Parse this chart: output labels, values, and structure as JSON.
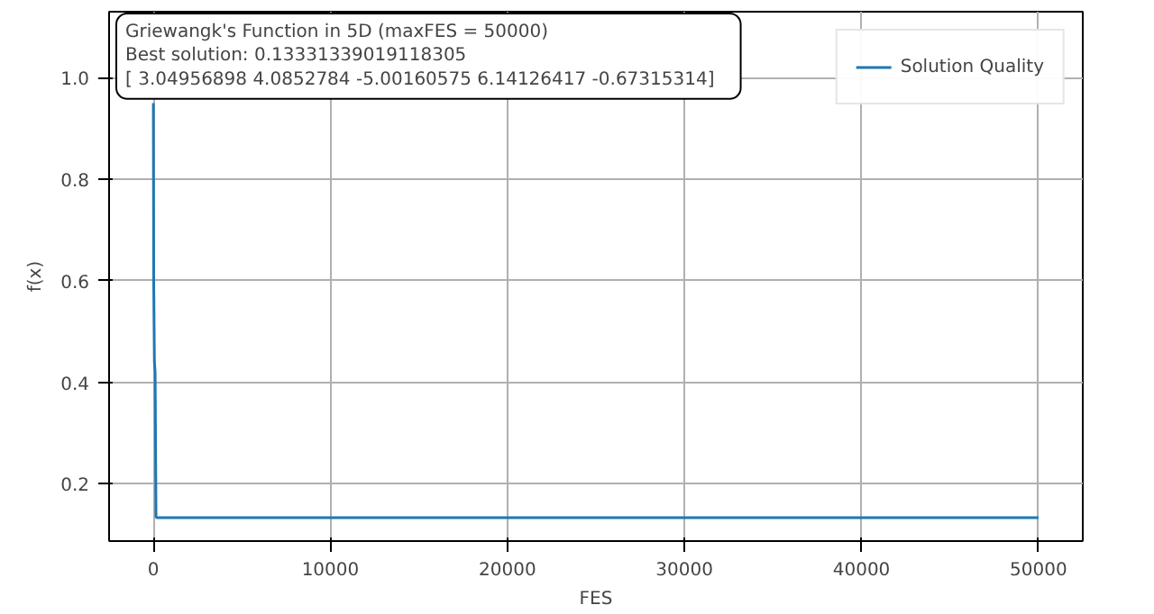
{
  "chart_data": {
    "type": "line",
    "xlabel": "FES",
    "ylabel": "f(x)",
    "annotations": [
      "Griewangk's Function in 5D (maxFES = 50000)\nBest solution: 0.13331339019118305\n[ 3.04956898  4.0852784  -5.00160575  6.14126417 -0.67315314]"
    ],
    "x": [
      0,
      20,
      40,
      60,
      100,
      150,
      200,
      50000
    ],
    "series": [
      {
        "name": "Solution Quality",
        "color": "#1f77b4",
        "values": [
          0.95,
          0.6,
          0.52,
          0.44,
          0.42,
          0.135,
          0.133,
          0.133
        ]
      }
    ],
    "xlim": [
      -2500,
      52500
    ],
    "ylim": [
      0.087,
      1.13
    ],
    "xticks": [
      0,
      10000,
      20000,
      30000,
      40000,
      50000
    ],
    "yticks": [
      {
        "value": 0.2,
        "label": "0.2"
      },
      {
        "value": 0.4,
        "label": "0.4"
      },
      {
        "value": 0.6,
        "label": "0.6"
      },
      {
        "value": 0.8,
        "label": "0.8"
      },
      {
        "value": 1,
        "label": "1.0"
      }
    ],
    "grid": true,
    "legend": "top right",
    "line_style": "solid"
  }
}
